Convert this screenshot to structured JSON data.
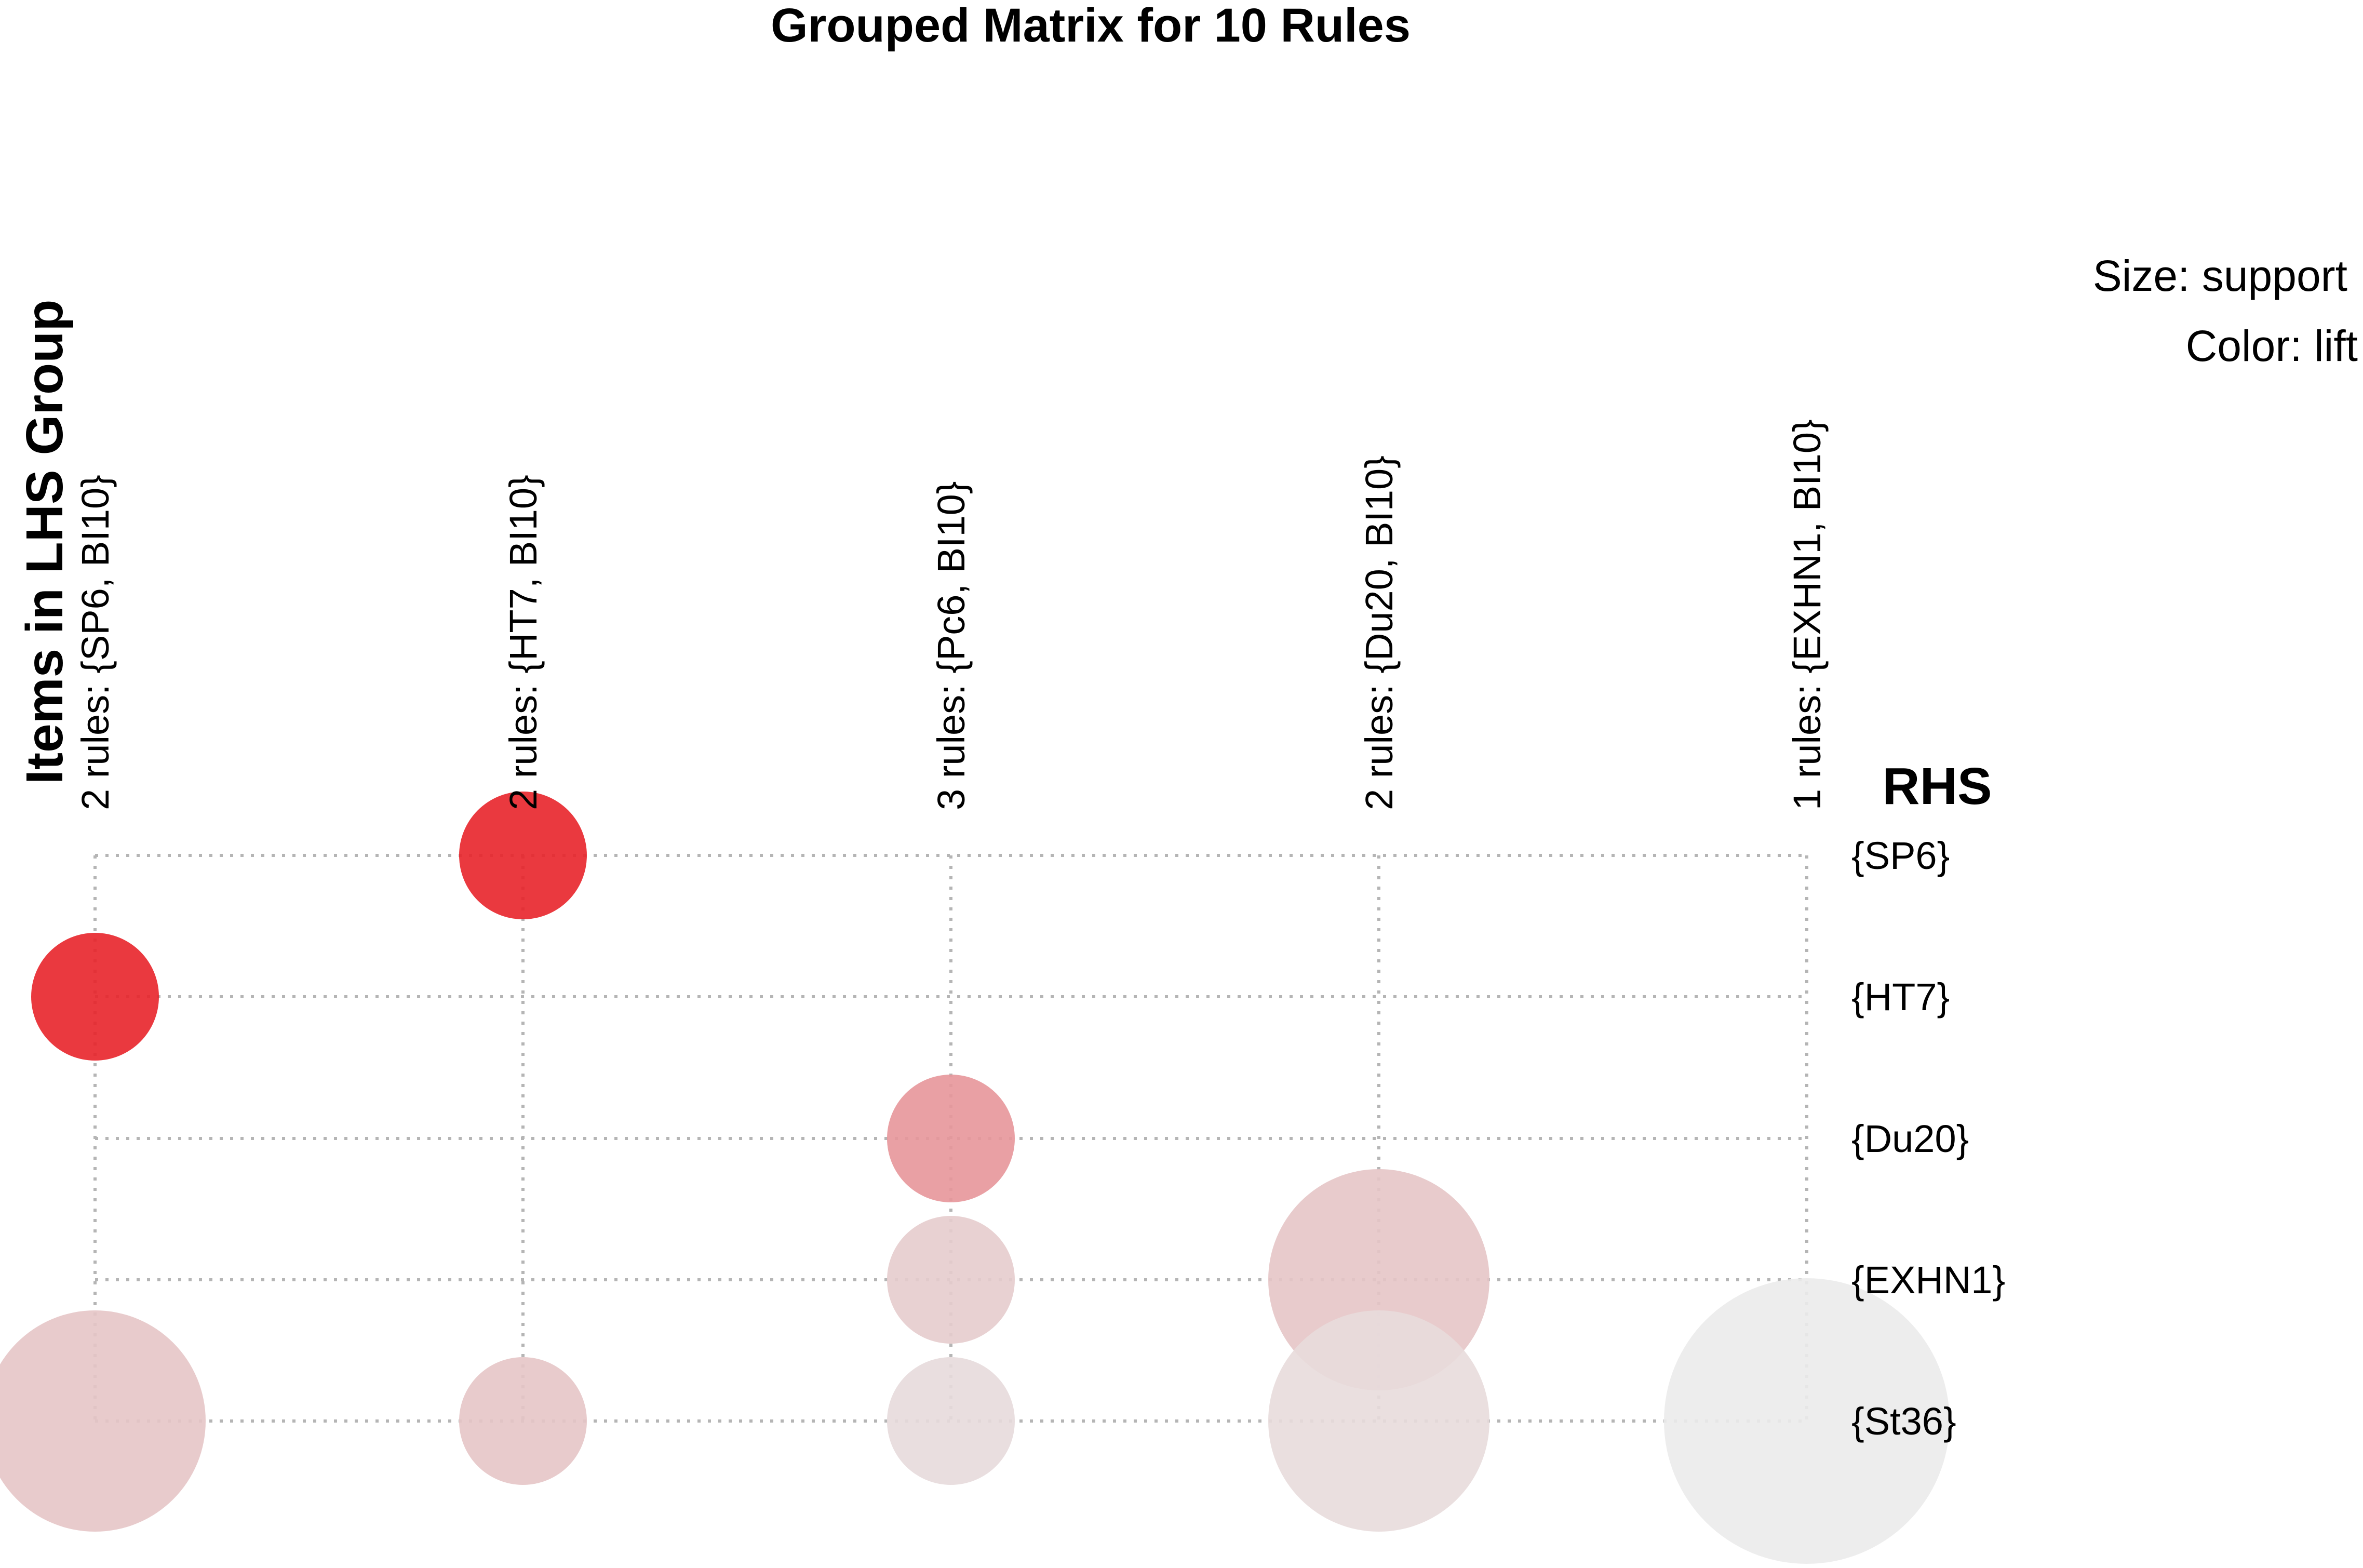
{
  "chart_data": {
    "type": "scatter",
    "title": "Grouped Matrix for 10 Rules",
    "xlabel": "Items in LHS Group",
    "ylabel": "RHS",
    "legend": {
      "size": "Size: support",
      "color": "Color: lift"
    },
    "lhs_groups": [
      "2 rules: {SP6, BI10}",
      "2 rules: {HT7, BI10}",
      "3 rules: {Pc6, BI10}",
      "2 rules: {Du20, BI10}",
      "1 rules: {EXHN1, BI10}"
    ],
    "rhs_items": [
      "{SP6}",
      "{HT7}",
      "{Du20}",
      "{EXHN1}",
      "{St36}"
    ],
    "points": [
      {
        "lhs": 1,
        "rhs": 0,
        "support": 0.1,
        "lift": 1.0,
        "color": "#e8242a"
      },
      {
        "lhs": 0,
        "rhs": 1,
        "support": 0.1,
        "lift": 1.0,
        "color": "#e8242a"
      },
      {
        "lhs": 2,
        "rhs": 2,
        "support": 0.1,
        "lift": 0.55,
        "color": "#e7969a"
      },
      {
        "lhs": 2,
        "rhs": 3,
        "support": 0.1,
        "lift": 0.3,
        "color": "#e5cccd"
      },
      {
        "lhs": 3,
        "rhs": 3,
        "support": 0.3,
        "lift": 0.4,
        "color": "#e6c5c7"
      },
      {
        "lhs": 0,
        "rhs": 4,
        "support": 0.3,
        "lift": 0.4,
        "color": "#e6c5c7"
      },
      {
        "lhs": 1,
        "rhs": 4,
        "support": 0.1,
        "lift": 0.4,
        "color": "#e6c5c7"
      },
      {
        "lhs": 2,
        "rhs": 4,
        "support": 0.1,
        "lift": 0.1,
        "color": "#e7dadb"
      },
      {
        "lhs": 3,
        "rhs": 4,
        "support": 0.3,
        "lift": 0.15,
        "color": "#e8dcdc"
      },
      {
        "lhs": 4,
        "rhs": 4,
        "support": 0.5,
        "lift": 0.0,
        "color": "#ebebeb"
      }
    ]
  }
}
